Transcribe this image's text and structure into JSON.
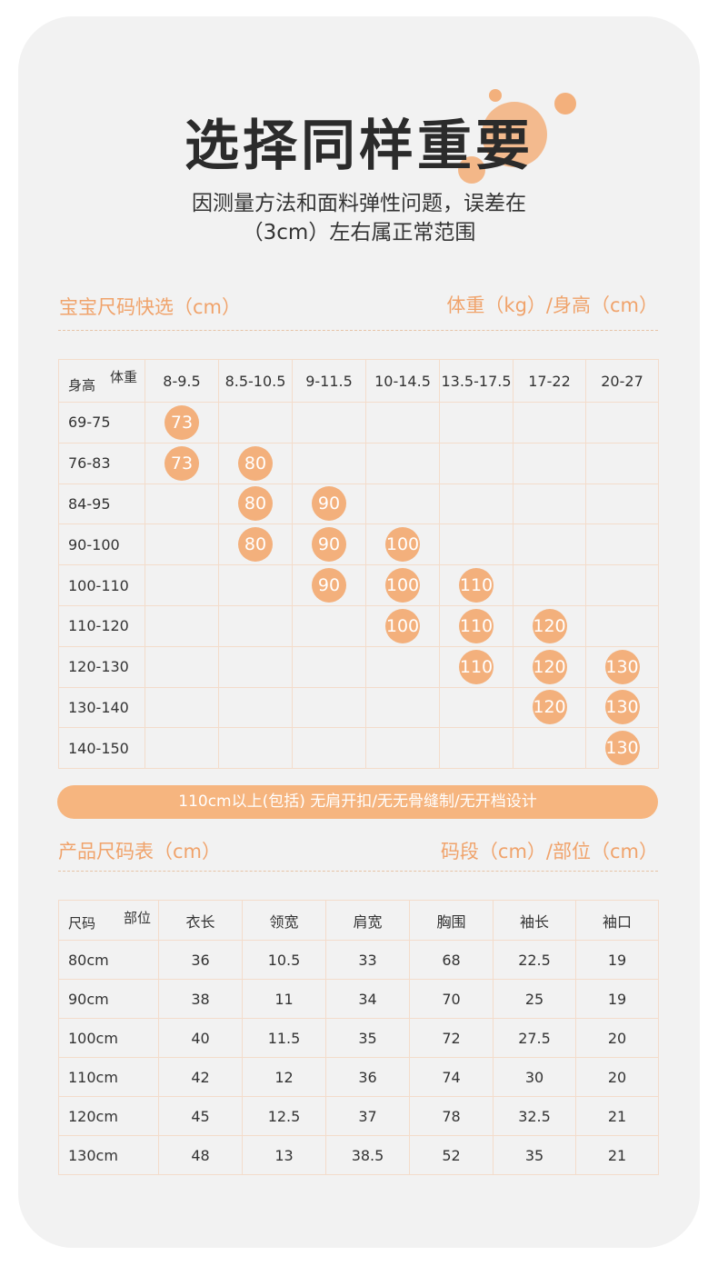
{
  "title": "选择同样重要",
  "subtitle_line1": "因测量方法和面料弹性问题，误差在",
  "subtitle_line2": "（3cm）左右属正常范围",
  "quick": {
    "left_label": "宝宝尺码快选（cm）",
    "right_label": "体重（kg）/身高（cm）",
    "corner_top": "体重",
    "corner_bottom": "身高",
    "weights": [
      "8-9.5",
      "8.5-10.5",
      "9-11.5",
      "10-14.5",
      "13.5-17.5",
      "17-22",
      "20-27"
    ],
    "rows": [
      {
        "height": "69-75",
        "sizes": [
          "73",
          "",
          "",
          "",
          "",
          "",
          ""
        ]
      },
      {
        "height": "76-83",
        "sizes": [
          "73",
          "80",
          "",
          "",
          "",
          "",
          ""
        ]
      },
      {
        "height": "84-95",
        "sizes": [
          "",
          "80",
          "90",
          "",
          "",
          "",
          ""
        ]
      },
      {
        "height": "90-100",
        "sizes": [
          "",
          "80",
          "90",
          "100",
          "",
          "",
          ""
        ]
      },
      {
        "height": "100-110",
        "sizes": [
          "",
          "",
          "90",
          "100",
          "110",
          "",
          ""
        ]
      },
      {
        "height": "110-120",
        "sizes": [
          "",
          "",
          "",
          "100",
          "110",
          "120",
          ""
        ]
      },
      {
        "height": "120-130",
        "sizes": [
          "",
          "",
          "",
          "",
          "110",
          "120",
          "130"
        ]
      },
      {
        "height": "130-140",
        "sizes": [
          "",
          "",
          "",
          "",
          "",
          "120",
          "130"
        ]
      },
      {
        "height": "140-150",
        "sizes": [
          "",
          "",
          "",
          "",
          "",
          "",
          "130"
        ]
      }
    ]
  },
  "banner": "110cm以上(包括) 无肩开扣/无无骨缝制/无开档设计",
  "product": {
    "left_label": "产品尺码表（cm）",
    "right_label": "码段（cm）/部位（cm）",
    "corner_top": "部位",
    "corner_bottom": "尺码",
    "columns": [
      "衣长",
      "领宽",
      "肩宽",
      "胸围",
      "袖长",
      "袖口"
    ],
    "rows": [
      {
        "size": "80cm",
        "values": [
          "36",
          "10.5",
          "33",
          "68",
          "22.5",
          "19"
        ]
      },
      {
        "size": "90cm",
        "values": [
          "38",
          "11",
          "34",
          "70",
          "25",
          "19"
        ]
      },
      {
        "size": "100cm",
        "values": [
          "40",
          "11.5",
          "35",
          "72",
          "27.5",
          "20"
        ]
      },
      {
        "size": "110cm",
        "values": [
          "42",
          "12",
          "36",
          "74",
          "30",
          "20"
        ]
      },
      {
        "size": "120cm",
        "values": [
          "45",
          "12.5",
          "37",
          "78",
          "32.5",
          "21"
        ]
      },
      {
        "size": "130cm",
        "values": [
          "48",
          "13",
          "38.5",
          "52",
          "35",
          "21"
        ]
      }
    ]
  },
  "colors": {
    "accent": "#f3b07c",
    "label": "#f0a36b",
    "border": "#f3dccb",
    "background": "#f2f2f2"
  }
}
